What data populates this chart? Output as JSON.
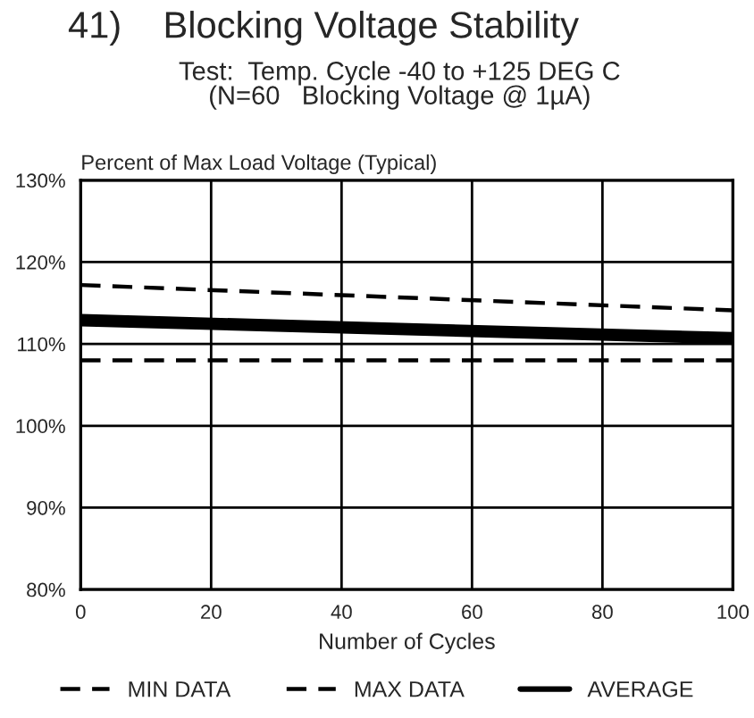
{
  "chart_data": {
    "type": "line",
    "title": "41)    Blocking Voltage Stability",
    "subtitle": "Test:  Temp. Cycle -40 to +125 DEG C\n(N=60   Blocking Voltage @ 1µA)",
    "ylabel": "Percent of Max Load Voltage (Typical)",
    "xlabel": "Number of Cycles",
    "x": [
      0,
      100
    ],
    "series": [
      {
        "name": "MIN DATA",
        "color": "#000000",
        "values": [
          108,
          108
        ],
        "line_style": "dashed"
      },
      {
        "name": "MAX DATA",
        "color": "#000000",
        "values": [
          117.2,
          114.1
        ],
        "line_style": "dashed"
      },
      {
        "name": "AVERAGE",
        "color": "#000000",
        "values": [
          112.9,
          110.7
        ],
        "line_style": "solid"
      }
    ],
    "xlim": [
      0,
      100
    ],
    "xticks": [
      0,
      20,
      40,
      60,
      80,
      100
    ],
    "ylim": [
      80,
      130
    ],
    "yticks": [
      {
        "value": 80,
        "label": "80%"
      },
      {
        "value": 90,
        "label": "90%"
      },
      {
        "value": 100,
        "label": "100%"
      },
      {
        "value": 110,
        "label": "110%"
      },
      {
        "value": 120,
        "label": "120%"
      },
      {
        "value": 130,
        "label": "130%"
      }
    ],
    "grid": true,
    "legend": "bottom"
  }
}
